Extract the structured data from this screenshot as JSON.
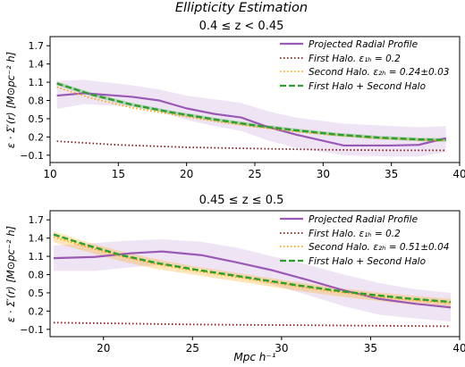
{
  "figure": {
    "title": "Ellipticity Estimation",
    "xlabel": "Mpc h⁻¹"
  },
  "chart_data": [
    {
      "type": "line",
      "title": "0.4 ≤ z < 0.45",
      "ylabel": "ε · Σ′(r) [M⊙pc⁻² h]",
      "xlim": [
        10,
        40
      ],
      "ylim": [
        -0.22,
        1.85
      ],
      "xticks": [
        10,
        15,
        20,
        25,
        30,
        35,
        40
      ],
      "yticks": [
        -0.1,
        0.2,
        0.5,
        0.8,
        1.1,
        1.4,
        1.7
      ],
      "legend_position": "top-right",
      "series": [
        {
          "name": "Projected Radial Profile",
          "color": "#9b59b6",
          "style": "solid",
          "x": [
            10.5,
            12.5,
            16,
            18,
            20,
            22,
            24,
            26,
            28,
            31.5,
            35,
            37,
            39
          ],
          "y": [
            0.88,
            0.92,
            0.86,
            0.8,
            0.67,
            0.58,
            0.52,
            0.36,
            0.24,
            0.06,
            0.06,
            0.07,
            0.18
          ],
          "band_upper": [
            1.12,
            1.14,
            1.05,
            0.98,
            0.88,
            0.82,
            0.76,
            0.62,
            0.52,
            0.42,
            0.38,
            0.36,
            0.38
          ],
          "band_lower": [
            0.66,
            0.74,
            0.7,
            0.62,
            0.48,
            0.38,
            0.3,
            0.14,
            0.02,
            -0.1,
            -0.12,
            -0.12,
            -0.05
          ]
        },
        {
          "name": "First Halo.  ε₁ₕ = 0.2",
          "color": "#8b1a1a",
          "style": "dotted",
          "x": [
            10.5,
            15,
            20,
            25,
            30,
            35,
            39
          ],
          "y": [
            0.13,
            0.07,
            0.03,
            0.01,
            -0.01,
            -0.02,
            -0.02
          ]
        },
        {
          "name": "Second Halo.  ε₂ₕ = 0.24±0.03",
          "color": "#ffa500",
          "style": "dotted",
          "x": [
            10.5,
            13,
            16,
            19,
            22,
            25,
            28,
            31,
            34,
            37,
            39
          ],
          "y": [
            1.02,
            0.84,
            0.68,
            0.57,
            0.46,
            0.37,
            0.29,
            0.23,
            0.18,
            0.15,
            0.14
          ]
        },
        {
          "name": "First Halo + Second Halo",
          "color": "#2ca02c",
          "style": "dashed",
          "x": [
            10.5,
            13,
            16,
            19,
            22,
            25,
            28,
            31,
            34,
            37,
            39
          ],
          "y": [
            1.08,
            0.9,
            0.73,
            0.6,
            0.49,
            0.39,
            0.31,
            0.24,
            0.19,
            0.16,
            0.15
          ],
          "band_upper": [
            1.11,
            0.93,
            0.76,
            0.63,
            0.52,
            0.42,
            0.34,
            0.27,
            0.22,
            0.19,
            0.18
          ],
          "band_lower": [
            1.05,
            0.87,
            0.7,
            0.57,
            0.46,
            0.36,
            0.28,
            0.21,
            0.16,
            0.13,
            0.12
          ]
        }
      ]
    },
    {
      "type": "line",
      "title": "0.45 ≤ z ≤ 0.5",
      "ylabel": "ε · Σ′(r) [M⊙pc⁻² h]",
      "xlim": [
        17,
        40
      ],
      "ylim": [
        -0.22,
        1.85
      ],
      "xticks": [
        20,
        25,
        30,
        35,
        40
      ],
      "yticks": [
        -0.1,
        0.2,
        0.5,
        0.8,
        1.1,
        1.4,
        1.7
      ],
      "legend_position": "top-right",
      "series": [
        {
          "name": "Projected Radial Profile",
          "color": "#9b59b6",
          "style": "solid",
          "x": [
            17.2,
            19.5,
            21.5,
            23.3,
            25.5,
            27.5,
            29.5,
            31.5,
            33.5,
            35.5,
            37.5,
            39.5
          ],
          "y": [
            1.07,
            1.09,
            1.15,
            1.18,
            1.12,
            1.0,
            0.87,
            0.71,
            0.54,
            0.4,
            0.32,
            0.26
          ],
          "band_upper": [
            1.28,
            1.32,
            1.36,
            1.38,
            1.34,
            1.24,
            1.1,
            0.96,
            0.8,
            0.66,
            0.56,
            0.5
          ],
          "band_lower": [
            0.86,
            0.86,
            0.92,
            0.96,
            0.9,
            0.77,
            0.63,
            0.46,
            0.28,
            0.14,
            0.08,
            0.03
          ]
        },
        {
          "name": "First Halo.  ε₁ₕ = 0.2",
          "color": "#8b1a1a",
          "style": "dotted",
          "x": [
            17.2,
            20,
            25,
            30,
            35,
            39.5
          ],
          "y": [
            0.01,
            0.0,
            -0.02,
            -0.03,
            -0.04,
            -0.05
          ]
        },
        {
          "name": "Second Halo.  ε₂ₕ = 0.51±0.04",
          "color": "#ffa500",
          "style": "dotted",
          "x": [
            17.2,
            19,
            21,
            23,
            25,
            27,
            29,
            31,
            33,
            35,
            37,
            39.5
          ],
          "y": [
            1.42,
            1.26,
            1.1,
            0.97,
            0.87,
            0.78,
            0.69,
            0.6,
            0.52,
            0.45,
            0.39,
            0.33
          ],
          "band_upper": [
            1.51,
            1.34,
            1.18,
            1.05,
            0.94,
            0.85,
            0.76,
            0.67,
            0.59,
            0.52,
            0.46,
            0.4
          ],
          "band_lower": [
            1.33,
            1.18,
            1.02,
            0.89,
            0.8,
            0.71,
            0.62,
            0.53,
            0.45,
            0.38,
            0.32,
            0.26
          ]
        },
        {
          "name": "First Halo + Second Halo",
          "color": "#2ca02c",
          "style": "dashed",
          "x": [
            17.2,
            19,
            21,
            23,
            25,
            27,
            29,
            31,
            33,
            35,
            37,
            39.5
          ],
          "y": [
            1.46,
            1.29,
            1.12,
            0.99,
            0.89,
            0.8,
            0.71,
            0.62,
            0.54,
            0.47,
            0.41,
            0.35
          ]
        }
      ]
    }
  ]
}
